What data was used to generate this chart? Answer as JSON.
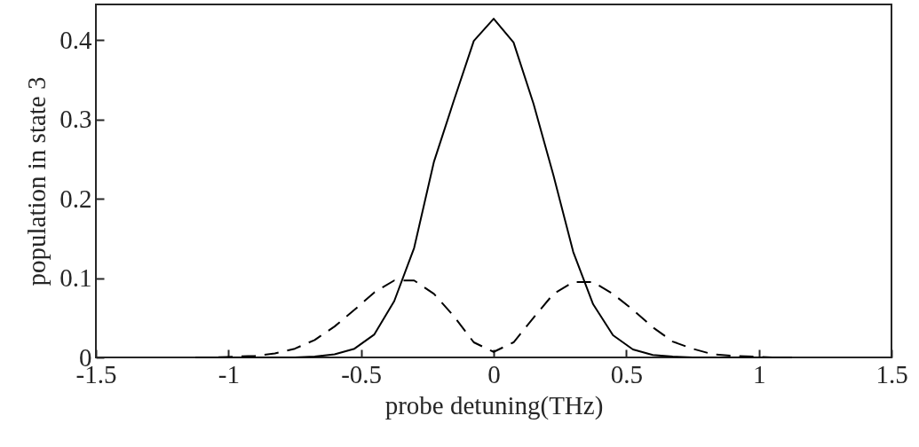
{
  "chart_data": {
    "type": "line",
    "xlabel": "probe detuning(THz)",
    "ylabel": "population in state 3",
    "x": [
      -1.125,
      -1.05,
      -0.975,
      -0.9,
      -0.825,
      -0.75,
      -0.675,
      -0.6,
      -0.525,
      -0.45,
      -0.375,
      -0.3,
      -0.225,
      -0.15,
      -0.075,
      0,
      0.075,
      0.15,
      0.225,
      0.3,
      0.375,
      0.45,
      0.525,
      0.6,
      0.675,
      0.75,
      0.825,
      0.9,
      0.975,
      1.05,
      1.125
    ],
    "series": [
      {
        "color": "#000000",
        "line_style": "solid",
        "values": [
          0,
          0,
          0,
          0,
          0,
          0,
          0.001,
          0.004,
          0.011,
          0.029,
          0.071,
          0.138,
          0.247,
          0.324,
          0.399,
          0.427,
          0.397,
          0.32,
          0.23,
          0.133,
          0.067,
          0.028,
          0.01,
          0.003,
          0.001,
          0,
          0,
          0,
          0,
          0,
          0
        ]
      },
      {
        "color": "#000000",
        "line_style": "dashed",
        "values": [
          0,
          0,
          0.001,
          0.002,
          0.005,
          0.011,
          0.022,
          0.039,
          0.06,
          0.082,
          0.097,
          0.097,
          0.08,
          0.052,
          0.019,
          0.007,
          0.019,
          0.05,
          0.08,
          0.095,
          0.095,
          0.08,
          0.06,
          0.038,
          0.02,
          0.011,
          0.004,
          0.002,
          0.001,
          0,
          0
        ]
      }
    ],
    "xlim": [
      -1.5,
      1.5
    ],
    "xticks": [
      -1.5,
      -1,
      -0.5,
      0,
      0.5,
      1,
      1.5
    ],
    "ylim": [
      0,
      0.445
    ],
    "yticks": [
      0,
      0.1,
      0.2,
      0.3,
      0.4
    ],
    "grid": false,
    "marker": "none"
  }
}
